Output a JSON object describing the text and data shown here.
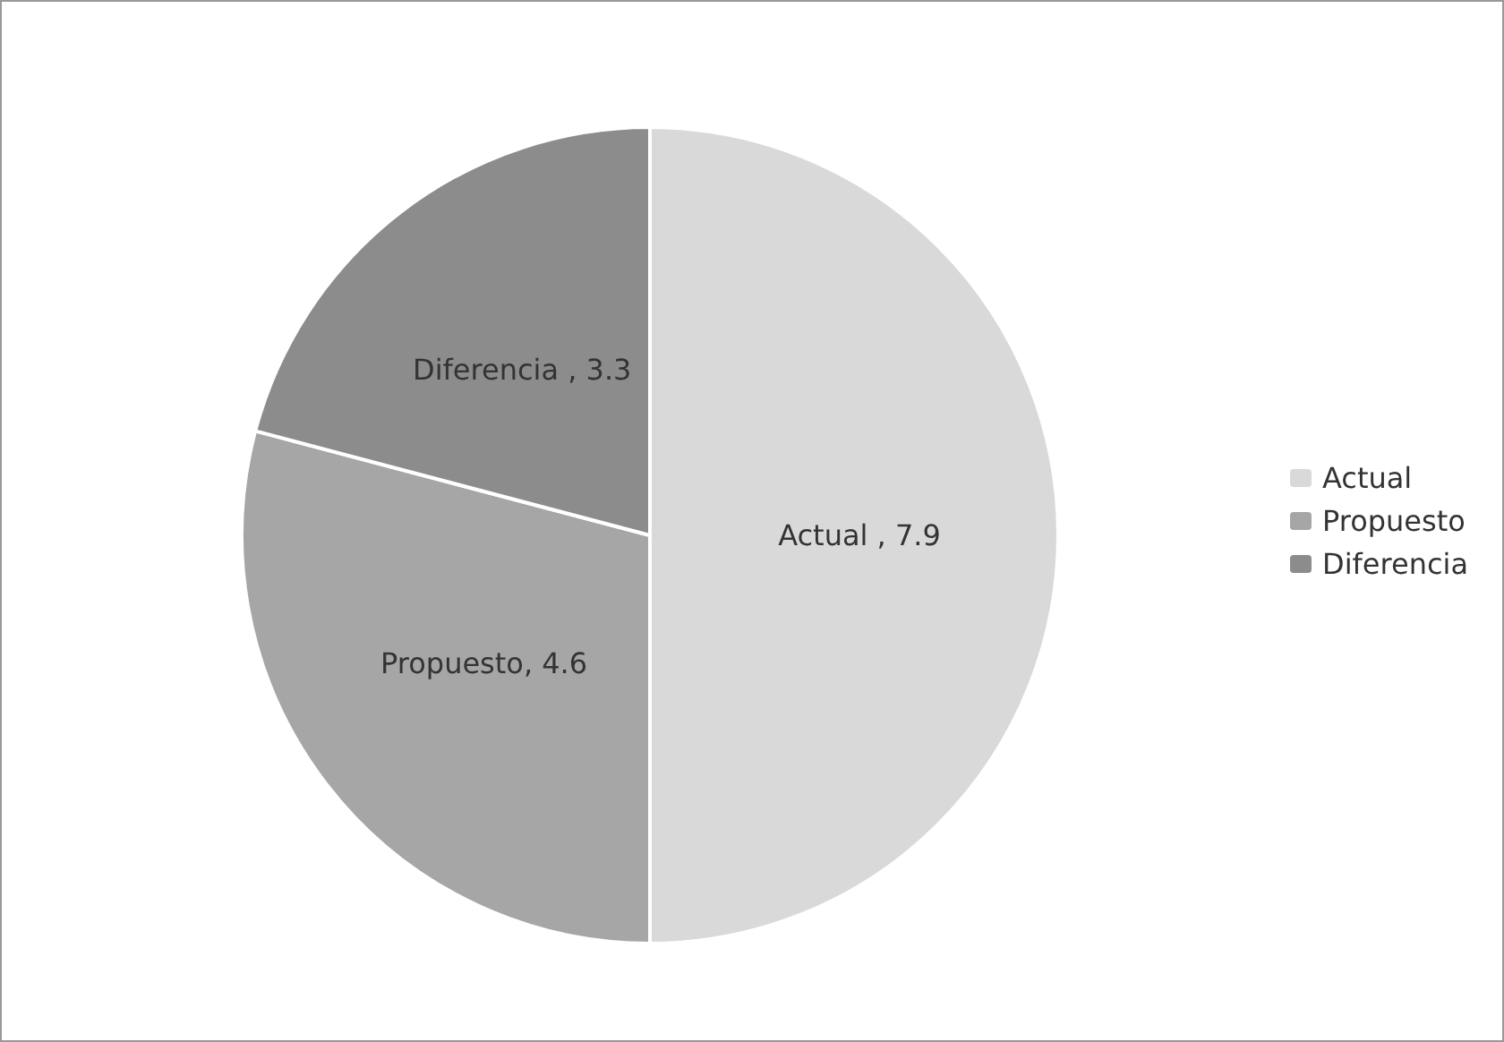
{
  "chart_data": {
    "type": "pie",
    "categories": [
      "Actual",
      "Propuesto",
      "Diferencia"
    ],
    "values": [
      7.9,
      4.6,
      3.3
    ],
    "colors": [
      "#d9d9d9",
      "#a6a6a6",
      "#8c8c8c"
    ],
    "value_labels": [
      "Actual , 7.9",
      "Propuesto, 4.6",
      "Diferencia , 3.3"
    ],
    "legend": "right"
  }
}
